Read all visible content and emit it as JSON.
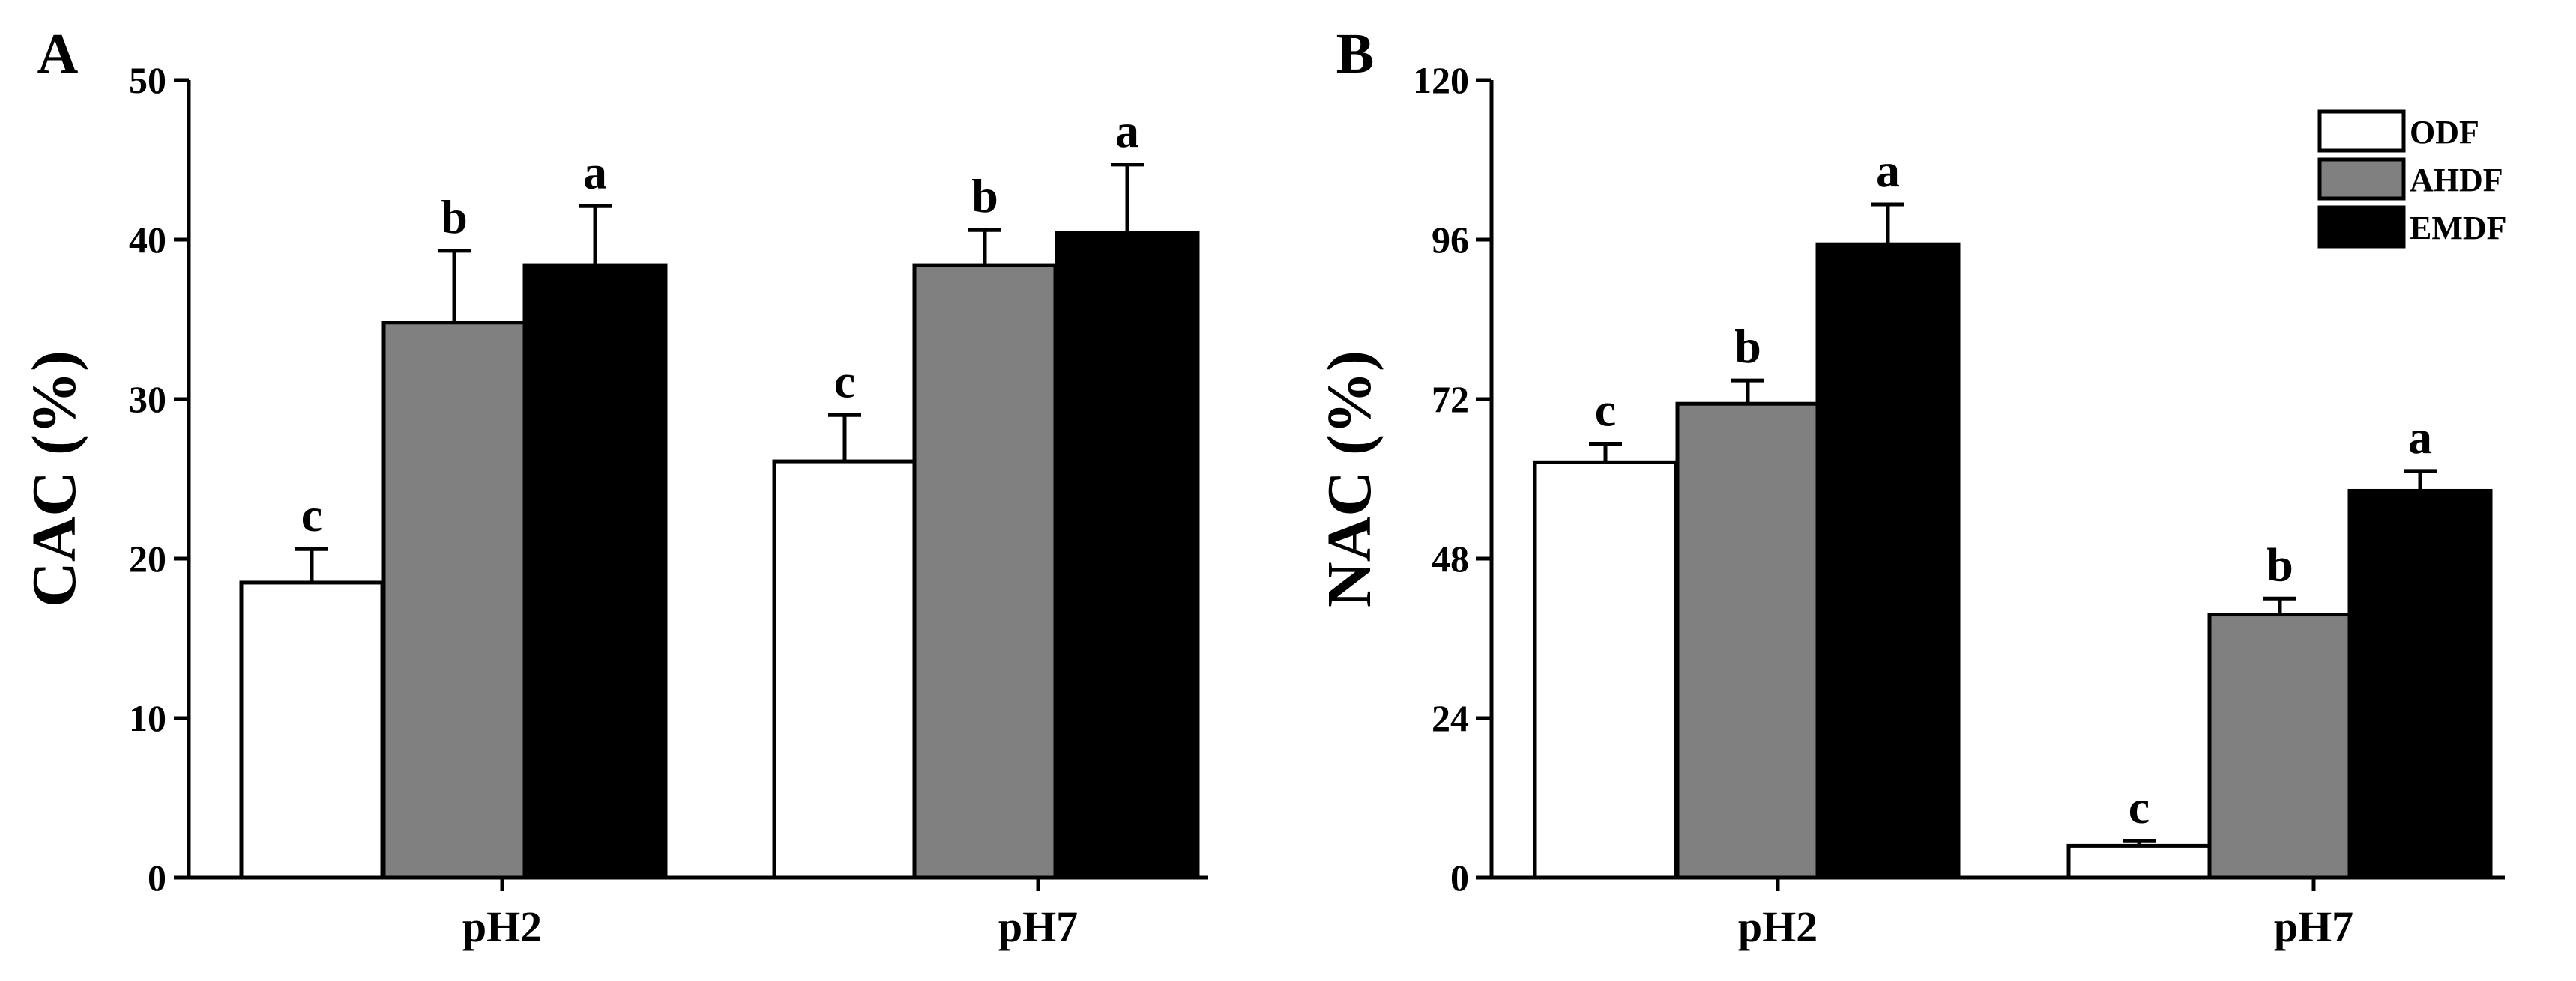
{
  "chart_data": [
    {
      "panel": "A",
      "type": "bar",
      "ylabel": "CAC (%)",
      "ylim": [
        0,
        50
      ],
      "yticks": [
        0,
        10,
        20,
        30,
        40,
        50
      ],
      "categories": [
        "pH2",
        "pH7"
      ],
      "series": [
        {
          "name": "ODF",
          "color": "#ffffff",
          "values": [
            18.5,
            26.1
          ],
          "errors": [
            2.1,
            2.9
          ],
          "labels": [
            "c",
            "c"
          ]
        },
        {
          "name": "AHDF",
          "color": "#808080",
          "values": [
            34.8,
            38.4
          ],
          "errors": [
            4.5,
            2.2
          ],
          "labels": [
            "b",
            "b"
          ]
        },
        {
          "name": "EMDF",
          "color": "#000000",
          "values": [
            38.4,
            40.4
          ],
          "errors": [
            3.7,
            4.3
          ],
          "labels": [
            "a",
            "a"
          ]
        }
      ],
      "legend": false
    },
    {
      "panel": "B",
      "type": "bar",
      "ylabel": "NAC (%)",
      "ylim": [
        0,
        120
      ],
      "yticks": [
        0,
        24,
        48,
        72,
        96,
        120
      ],
      "categories": [
        "pH2",
        "pH7"
      ],
      "series": [
        {
          "name": "ODF",
          "color": "#ffffff",
          "values": [
            62.5,
            4.8
          ],
          "errors": [
            2.8,
            0.7
          ],
          "labels": [
            "c",
            "c"
          ]
        },
        {
          "name": "AHDF",
          "color": "#808080",
          "values": [
            71.3,
            39.6
          ],
          "errors": [
            3.5,
            2.4
          ],
          "labels": [
            "b",
            "b"
          ]
        },
        {
          "name": "EMDF",
          "color": "#000000",
          "values": [
            95.3,
            58.2
          ],
          "errors": [
            6.0,
            3.0
          ],
          "labels": [
            "a",
            "a"
          ]
        }
      ],
      "legend": true,
      "legend_position": "top-right"
    }
  ]
}
